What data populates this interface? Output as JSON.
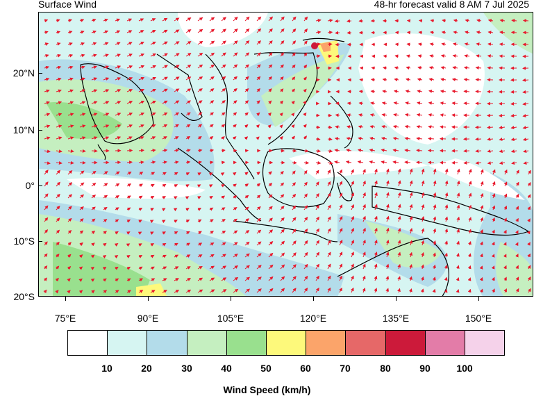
{
  "header": {
    "title": "Surface Wind",
    "subtitle": "48-hr forecast valid 8 AM 7 Jul 2025"
  },
  "map": {
    "lat_labels": [
      "20°N",
      "10°N",
      "0°",
      "10°S",
      "20°S"
    ],
    "lon_labels": [
      "75°E",
      "90°E",
      "105°E",
      "120°E",
      "135°E",
      "150°E"
    ],
    "lat_range": [
      -20,
      30
    ],
    "lon_range": [
      70,
      160
    ],
    "vector_color": "#e8192c",
    "coast_color": "#000000"
  },
  "legend": {
    "title": "Wind Speed (km/h)",
    "colors": [
      "#ffffff",
      "#d6f5f2",
      "#b3dcea",
      "#c5efc0",
      "#99e08e",
      "#fdf97b",
      "#fba46a",
      "#e66868",
      "#cc1a3a",
      "#e37ca8",
      "#f5d2ea"
    ],
    "labels": [
      "10",
      "20",
      "30",
      "40",
      "50",
      "60",
      "70",
      "80",
      "90",
      "100"
    ]
  }
}
